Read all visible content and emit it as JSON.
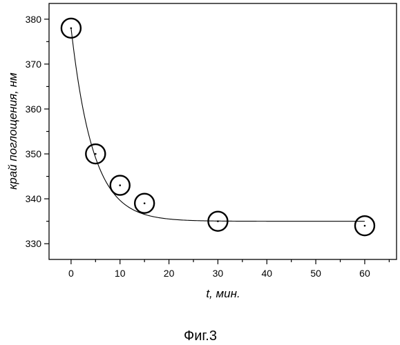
{
  "chart_data": {
    "type": "scatter",
    "title": "",
    "xlabel": "t, мин.",
    "ylabel": "край поглощения, нм",
    "x_ticks": [
      0,
      10,
      20,
      30,
      40,
      50,
      60
    ],
    "y_ticks": [
      330,
      340,
      350,
      360,
      370,
      380
    ],
    "xlim": [
      -4.5,
      66.5
    ],
    "ylim": [
      326.5,
      383.5
    ],
    "grid": false,
    "legend": "none",
    "series": [
      {
        "x": [
          0,
          5,
          10,
          15,
          30,
          60
        ],
        "y": [
          378,
          350,
          343,
          339,
          335,
          334
        ]
      }
    ],
    "fit_curve": {
      "type": "exponential_decay",
      "y_inf": 335,
      "amplitude": 43,
      "tau": 4.5
    }
  },
  "caption": "Фиг.3"
}
